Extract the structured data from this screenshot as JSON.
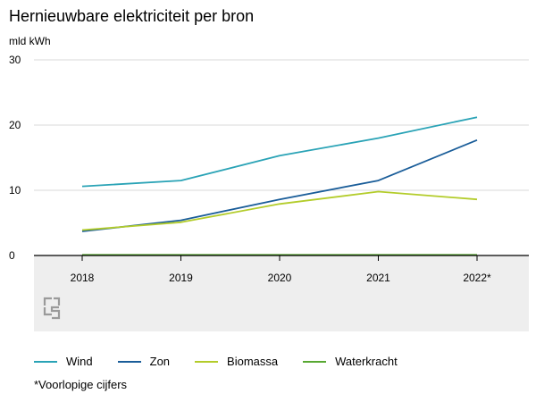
{
  "chart_data": {
    "type": "line",
    "title": "Hernieuwbare elektriciteit per bron",
    "ylabel": "mld kWh",
    "xlabel": "",
    "categories": [
      "2018",
      "2019",
      "2020",
      "2021",
      "2022*"
    ],
    "ylim": [
      0,
      30
    ],
    "yticks": [
      0,
      10,
      20,
      30
    ],
    "series": [
      {
        "name": "Wind",
        "color": "#2aa3b6",
        "values": [
          10.6,
          11.5,
          15.3,
          18.0,
          21.2
        ]
      },
      {
        "name": "Zon",
        "color": "#1a5d99",
        "values": [
          3.7,
          5.4,
          8.6,
          11.5,
          17.7
        ]
      },
      {
        "name": "Biomassa",
        "color": "#b3cc2a",
        "values": [
          3.9,
          5.1,
          7.9,
          9.8,
          8.6
        ]
      },
      {
        "name": "Waterkracht",
        "color": "#58a832",
        "values": [
          0.1,
          0.1,
          0.1,
          0.1,
          0.1
        ]
      }
    ],
    "footnote": "*Voorlopige cijfers",
    "grid": true,
    "legend_position": "bottom"
  }
}
